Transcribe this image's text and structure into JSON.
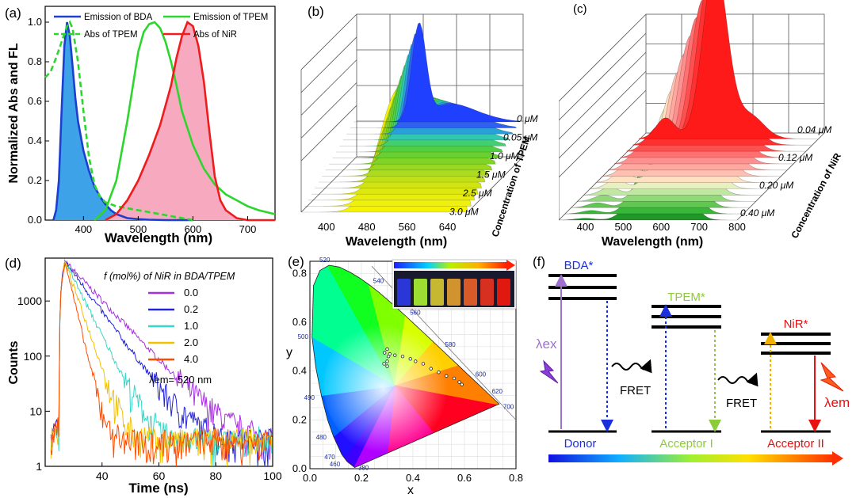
{
  "chart_data": [
    {
      "panel_label": "(a)",
      "type": "line",
      "xlabel": "Wavelength (nm)",
      "ylabel": "Normalized Abs and FL",
      "xlim": [
        330,
        750
      ],
      "ylim": [
        0,
        1.08
      ],
      "xticks": [
        400,
        500,
        600,
        700
      ],
      "yticks": [
        0.0,
        0.2,
        0.4,
        0.6,
        0.8,
        1.0
      ],
      "legend": "top",
      "series": [
        {
          "name": "Emission of BDA",
          "color": "#1d3fcf",
          "fill": "#3ea2e8",
          "dashed": false,
          "x": [
            345,
            350,
            355,
            360,
            365,
            370,
            375,
            380,
            385,
            390,
            400,
            410,
            420,
            430,
            440,
            450,
            460,
            470,
            480,
            500,
            520,
            550,
            600
          ],
          "y": [
            0.0,
            0.05,
            0.2,
            0.55,
            0.88,
            1.0,
            0.93,
            0.78,
            0.62,
            0.5,
            0.35,
            0.25,
            0.17,
            0.12,
            0.08,
            0.05,
            0.03,
            0.02,
            0.01,
            0.005,
            0.002,
            0.0,
            0.0
          ]
        },
        {
          "name": "Emission of TPEM",
          "color": "#2dd62d",
          "fill": null,
          "dashed": false,
          "x": [
            420,
            440,
            460,
            480,
            500,
            510,
            520,
            530,
            540,
            550,
            560,
            570,
            580,
            600,
            620,
            640,
            660,
            680,
            700,
            720,
            750
          ],
          "y": [
            0.0,
            0.05,
            0.2,
            0.5,
            0.85,
            0.95,
            0.99,
            1.0,
            0.97,
            0.9,
            0.8,
            0.68,
            0.55,
            0.38,
            0.26,
            0.18,
            0.13,
            0.1,
            0.07,
            0.05,
            0.03
          ]
        },
        {
          "name": "Abs of TPEM",
          "color": "#2dd62d",
          "fill": null,
          "dashed": true,
          "x": [
            330,
            340,
            350,
            360,
            370,
            375,
            380,
            390,
            400,
            410,
            420,
            430,
            440,
            460,
            480,
            500,
            520,
            540,
            560,
            580,
            600
          ],
          "y": [
            0.72,
            0.75,
            0.82,
            0.9,
            0.98,
            1.0,
            0.97,
            0.8,
            0.55,
            0.32,
            0.18,
            0.12,
            0.09,
            0.07,
            0.06,
            0.05,
            0.04,
            0.03,
            0.02,
            0.01,
            0.0
          ]
        },
        {
          "name": "Abs of NiR",
          "color": "#ee1c1c",
          "fill": "#f6a9bf",
          "dashed": false,
          "x": [
            440,
            460,
            480,
            500,
            520,
            540,
            560,
            570,
            580,
            590,
            600,
            610,
            620,
            630,
            640,
            650,
            660,
            680,
            700,
            750
          ],
          "y": [
            0.0,
            0.03,
            0.1,
            0.2,
            0.33,
            0.48,
            0.68,
            0.82,
            0.93,
            1.0,
            0.98,
            0.88,
            0.7,
            0.45,
            0.22,
            0.1,
            0.05,
            0.01,
            0.0,
            0.0
          ]
        }
      ]
    },
    {
      "panel_label": "(b)",
      "type": "area",
      "xlabel": "Wavelength (nm)",
      "zlabel": "Concentration of TPEM",
      "xticks": [
        "400",
        "480",
        "560",
        "640"
      ],
      "depth_labels": [
        "0 μM",
        "0.05 μM",
        "1.0 μM",
        "1.5 μM",
        "2.5 μM",
        "3.0 μM"
      ],
      "peaks": {
        "BDA_nm": 480,
        "TPEM_nm": 540
      }
    },
    {
      "panel_label": "(c)",
      "type": "area",
      "xlabel": "Wavelength (nm)",
      "zlabel": "Concentration of NiR",
      "xticks": [
        "400",
        "500",
        "600",
        "700",
        "800"
      ],
      "depth_labels": [
        "0.04 μM",
        "0.12 μM",
        "0.20 μM",
        "0.40 μM"
      ],
      "peaks": {
        "TPEM_nm": 530,
        "NiR_nm": 620
      }
    },
    {
      "panel_label": "(d)",
      "type": "line",
      "xlabel": "Time (ns)",
      "ylabel": "Counts",
      "xlim": [
        20,
        100
      ],
      "ylim": [
        1,
        6000
      ],
      "yscale": "log",
      "xticks": [
        40,
        60,
        80,
        100
      ],
      "yticks": [
        "1",
        "10",
        "100",
        "1000"
      ],
      "legend_title": "f (mol%) of NiR in BDA/TPEM",
      "annotation": "λem= 520 nm",
      "series": [
        {
          "name": "0.0",
          "color": "#a72fe0",
          "tau": 8.0
        },
        {
          "name": "0.2",
          "color": "#2424d9",
          "tau": 6.2
        },
        {
          "name": "1.0",
          "color": "#34d9c8",
          "tau": 4.2
        },
        {
          "name": "2.0",
          "color": "#f2c200",
          "tau": 2.9
        },
        {
          "name": "4.0",
          "color": "#ff4b00",
          "tau": 2.0
        }
      ]
    },
    {
      "panel_label": "(e)",
      "type": "scatter",
      "xlabel": "x",
      "ylabel": "y",
      "xlim": [
        0,
        0.8
      ],
      "ylim": [
        0,
        0.85
      ],
      "xticks": [
        "0.0",
        "0.2",
        "0.4",
        "0.6",
        "0.8"
      ],
      "yticks": [
        "0.0",
        "0.2",
        "0.4",
        "0.6",
        "0.8"
      ],
      "wavelength_labels": [
        "380",
        "460",
        "470",
        "480",
        "490",
        "500",
        "520",
        "540",
        "560",
        "580",
        "600",
        "620",
        "700"
      ],
      "points": {
        "x": [
          0.3,
          0.31,
          0.3,
          0.305,
          0.33,
          0.36,
          0.39,
          0.41,
          0.44,
          0.47,
          0.5,
          0.53,
          0.56,
          0.58,
          0.59,
          0.288,
          0.29,
          0.3
        ],
        "y": [
          0.44,
          0.47,
          0.49,
          0.46,
          0.465,
          0.46,
          0.45,
          0.44,
          0.43,
          0.41,
          0.395,
          0.38,
          0.37,
          0.355,
          0.345,
          0.43,
          0.475,
          0.42
        ]
      }
    }
  ],
  "diagram_f": {
    "panel_label": "(f)",
    "donor_state": "BDA*",
    "acceptor1_state": "TPEM*",
    "acceptor2_state": "NiR*",
    "donor": "Donor",
    "acceptor1": "Acceptor I",
    "acceptor2": "Acceptor II",
    "fret": "FRET",
    "lambda_ex": "λex",
    "lambda_em": "λem"
  }
}
